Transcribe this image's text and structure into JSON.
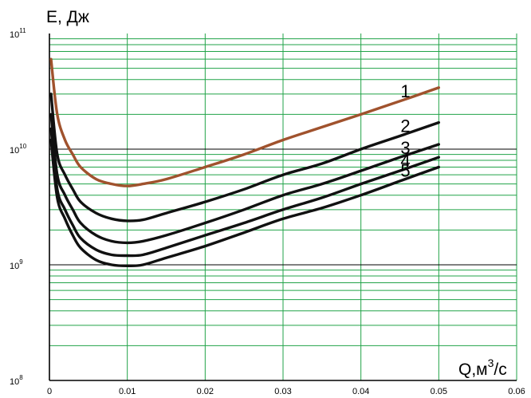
{
  "chart_data": {
    "type": "line",
    "title": "",
    "ylabel": "E, Дж",
    "xlabel": "Q,м³/с",
    "xlabel_parts": {
      "prefix": "Q,м",
      "sup": "3",
      "suffix": "/с"
    },
    "xlim": [
      0,
      0.06
    ],
    "ylim": [
      100000000,
      100000000000
    ],
    "yscale": "log",
    "grid": true,
    "x_ticks": [
      "0",
      "0.01",
      "0.02",
      "0.03",
      "0.04",
      "0.05",
      "0.06"
    ],
    "y_ticks": [
      {
        "base": "10",
        "exp": "8",
        "value": 100000000
      },
      {
        "base": "10",
        "exp": "9",
        "value": 1000000000
      },
      {
        "base": "10",
        "exp": "10",
        "value": 10000000000
      },
      {
        "base": "10",
        "exp": "11",
        "value": 100000000000
      }
    ],
    "series": [
      {
        "name": "1",
        "color": "#a0522d",
        "points": [
          [
            0.0002,
            60000000000
          ],
          [
            0.001,
            20000000000
          ],
          [
            0.002,
            12000000000
          ],
          [
            0.003,
            9000000000
          ],
          [
            0.004,
            7000000000
          ],
          [
            0.006,
            5500000000
          ],
          [
            0.008,
            5000000000
          ],
          [
            0.01,
            4800000000
          ],
          [
            0.012,
            5000000000
          ],
          [
            0.015,
            5500000000
          ],
          [
            0.02,
            7000000000
          ],
          [
            0.025,
            9000000000
          ],
          [
            0.03,
            12000000000
          ],
          [
            0.035,
            15500000000
          ],
          [
            0.04,
            20000000000
          ],
          [
            0.045,
            26000000000
          ],
          [
            0.05,
            34000000000
          ]
        ]
      },
      {
        "name": "2",
        "color": "#111111",
        "points": [
          [
            0.0002,
            30000000000
          ],
          [
            0.001,
            9000000000
          ],
          [
            0.002,
            6000000000
          ],
          [
            0.003,
            4500000000
          ],
          [
            0.004,
            3500000000
          ],
          [
            0.006,
            2800000000
          ],
          [
            0.008,
            2500000000
          ],
          [
            0.01,
            2400000000
          ],
          [
            0.012,
            2450000000
          ],
          [
            0.015,
            2800000000
          ],
          [
            0.02,
            3500000000
          ],
          [
            0.025,
            4500000000
          ],
          [
            0.03,
            6000000000
          ],
          [
            0.035,
            7500000000
          ],
          [
            0.04,
            10000000000
          ],
          [
            0.045,
            13000000000
          ],
          [
            0.05,
            17000000000
          ]
        ]
      },
      {
        "name": "3",
        "color": "#111111",
        "points": [
          [
            0.0002,
            20000000000
          ],
          [
            0.001,
            6000000000
          ],
          [
            0.002,
            4000000000
          ],
          [
            0.003,
            3000000000
          ],
          [
            0.004,
            2300000000
          ],
          [
            0.006,
            1800000000
          ],
          [
            0.008,
            1600000000
          ],
          [
            0.01,
            1550000000
          ],
          [
            0.012,
            1600000000
          ],
          [
            0.015,
            1800000000
          ],
          [
            0.02,
            2300000000
          ],
          [
            0.025,
            3000000000
          ],
          [
            0.03,
            4000000000
          ],
          [
            0.035,
            5000000000
          ],
          [
            0.04,
            6500000000
          ],
          [
            0.045,
            8500000000
          ],
          [
            0.05,
            11000000000
          ]
        ]
      },
      {
        "name": "4",
        "color": "#111111",
        "points": [
          [
            0.0002,
            15000000000
          ],
          [
            0.001,
            4500000000
          ],
          [
            0.002,
            3000000000
          ],
          [
            0.003,
            2200000000
          ],
          [
            0.004,
            1700000000
          ],
          [
            0.006,
            1350000000
          ],
          [
            0.008,
            1220000000
          ],
          [
            0.01,
            1200000000
          ],
          [
            0.012,
            1220000000
          ],
          [
            0.015,
            1400000000
          ],
          [
            0.02,
            1800000000
          ],
          [
            0.025,
            2300000000
          ],
          [
            0.03,
            3000000000
          ],
          [
            0.035,
            3800000000
          ],
          [
            0.04,
            5000000000
          ],
          [
            0.045,
            6500000000
          ],
          [
            0.05,
            8500000000
          ]
        ]
      },
      {
        "name": "5",
        "color": "#111111",
        "points": [
          [
            0.0002,
            12000000000
          ],
          [
            0.001,
            3800000000
          ],
          [
            0.002,
            2500000000
          ],
          [
            0.003,
            1800000000
          ],
          [
            0.004,
            1400000000
          ],
          [
            0.006,
            1100000000
          ],
          [
            0.008,
            1000000000
          ],
          [
            0.01,
            980000000
          ],
          [
            0.012,
            1000000000
          ],
          [
            0.015,
            1150000000
          ],
          [
            0.02,
            1450000000
          ],
          [
            0.025,
            1900000000
          ],
          [
            0.03,
            2500000000
          ],
          [
            0.035,
            3100000000
          ],
          [
            0.04,
            4000000000
          ],
          [
            0.045,
            5300000000
          ],
          [
            0.05,
            7000000000
          ]
        ]
      }
    ],
    "colors": {
      "grid_minor": "#21a348",
      "grid_major": "#000000",
      "curve_1": "#a0522d",
      "curves": "#111111"
    }
  }
}
